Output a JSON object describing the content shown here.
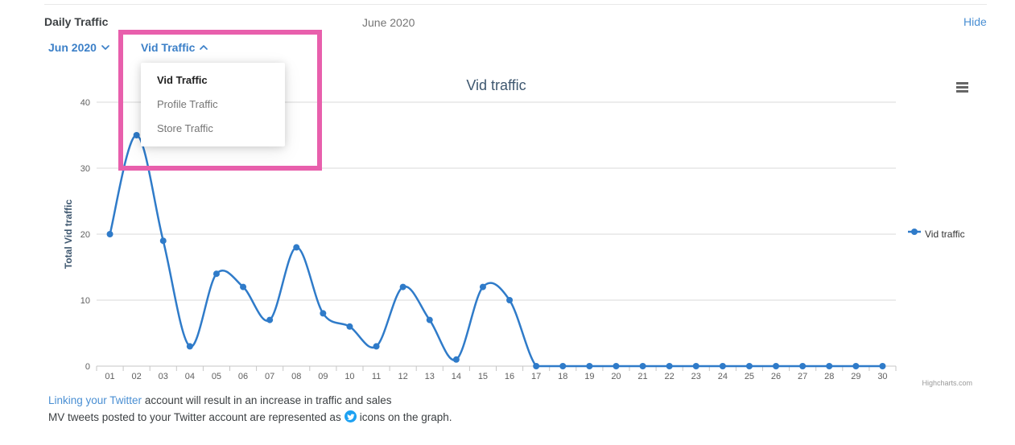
{
  "header": {
    "title": "Daily Traffic",
    "period": "June 2020",
    "hide_label": "Hide"
  },
  "selectors": {
    "month_label": "Jun 2020",
    "metric_label": "Vid Traffic"
  },
  "dropdown": {
    "items": [
      {
        "label": "Vid Traffic",
        "selected": true
      },
      {
        "label": "Profile Traffic",
        "selected": false
      },
      {
        "label": "Store Traffic",
        "selected": false
      }
    ]
  },
  "chart_data": {
    "type": "line",
    "title": "Vid traffic",
    "categories": [
      "01",
      "02",
      "03",
      "04",
      "05",
      "06",
      "07",
      "08",
      "09",
      "10",
      "11",
      "12",
      "13",
      "14",
      "15",
      "16",
      "17",
      "18",
      "19",
      "20",
      "21",
      "22",
      "23",
      "24",
      "25",
      "26",
      "27",
      "28",
      "29",
      "30"
    ],
    "series": [
      {
        "name": "Vid traffic",
        "values": [
          20,
          35,
          19,
          3,
          14,
          12,
          7,
          18,
          8,
          6,
          3,
          12,
          7,
          1,
          12,
          10,
          0,
          0,
          0,
          0,
          0,
          0,
          0,
          0,
          0,
          0,
          0,
          0,
          0,
          0
        ]
      }
    ],
    "xlabel": "",
    "ylabel": "Total Vid traffic",
    "ylim": [
      0,
      40
    ],
    "yticks": [
      0,
      10,
      20,
      30,
      40
    ],
    "grid": true,
    "smooth": true,
    "legend_position": "right",
    "line_color": "#2f7bc9"
  },
  "credits": {
    "label": "Highcharts.com"
  },
  "footer": {
    "link_text": "Linking your Twitter",
    "line1_rest": " account will result in an increase in traffic and sales",
    "line2_before": "MV tweets posted to your Twitter account are represented as",
    "line2_after": "icons on the graph."
  },
  "colors": {
    "accent_blue": "#3c80c8",
    "highlight_pink": "#e85fac",
    "line_blue": "#2f7bc9",
    "twitter_blue": "#1da1f2",
    "grid_gray": "#d8d8d8",
    "axis_gray": "#c6c6c6",
    "tick_label_gray": "#606060"
  }
}
